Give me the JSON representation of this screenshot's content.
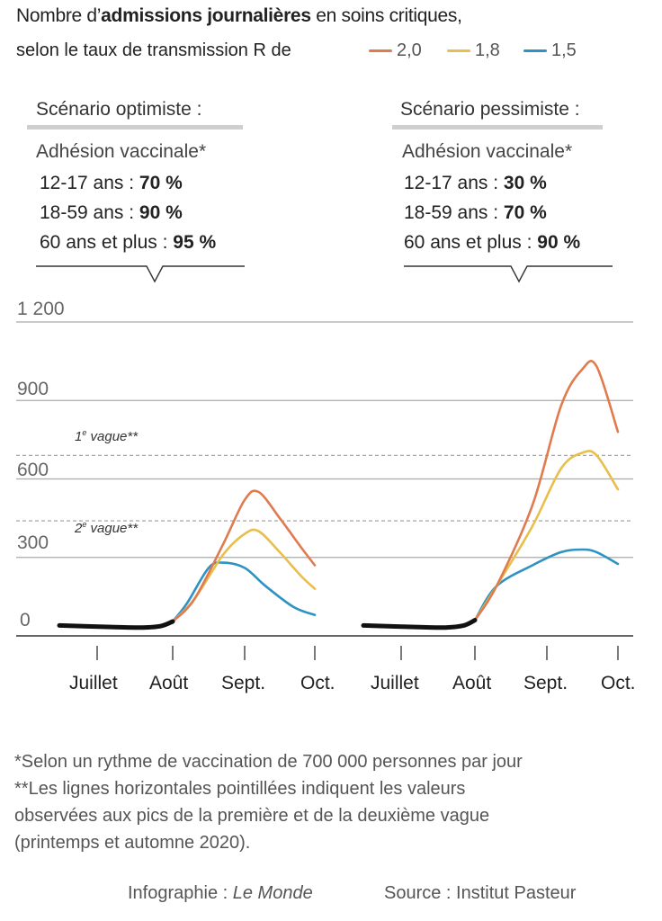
{
  "title": {
    "prefix": "Nombre d’",
    "bold": "admissions journalières",
    "suffix": " en soins critiques,",
    "line2": "selon le taux de transmission R de"
  },
  "legend": [
    {
      "label": "2,0",
      "color": "#e07a4f"
    },
    {
      "label": "1,8",
      "color": "#e8be4d"
    },
    {
      "label": "1,5",
      "color": "#2e93c2"
    }
  ],
  "scenarios": [
    {
      "heading": "Scénario optimiste :",
      "adhesion_label": "Adhésion vaccinale*",
      "rows": [
        {
          "label": "12-17 ans : ",
          "value": "70 %"
        },
        {
          "label": "18-59 ans : ",
          "value": "90 %"
        },
        {
          "label": "60 ans et plus : ",
          "value": "95 %"
        }
      ]
    },
    {
      "heading": "Scénario pessimiste :",
      "adhesion_label": "Adhésion vaccinale*",
      "rows": [
        {
          "label": "12-17 ans : ",
          "value": "30 %"
        },
        {
          "label": "18-59 ans : ",
          "value": "70 %"
        },
        {
          "label": "60 ans et plus : ",
          "value": "90 %"
        }
      ]
    }
  ],
  "chart_data": {
    "type": "line",
    "title": "Nombre d’admissions journalières en soins critiques, selon le taux de transmission R de",
    "ylim": [
      0,
      1200
    ],
    "yticks": [
      0,
      300,
      600,
      900,
      1200
    ],
    "ytick_labels": [
      "0",
      "300",
      "600",
      "900",
      "1 200"
    ],
    "reference_lines": [
      {
        "label": "1e vague**",
        "sup": "e",
        "base": "1",
        "rest": " vague**",
        "value": 690
      },
      {
        "label": "2e vague**",
        "sup": "e",
        "base": "2",
        "rest": " vague**",
        "value": 440
      }
    ],
    "panels": [
      {
        "name": "Scénario optimiste",
        "x_ticks": [
          "Juillet",
          "Août",
          "Sept.",
          "Oct."
        ],
        "observed": [
          [
            0,
            40
          ],
          [
            0.3,
            33
          ],
          [
            0.6,
            32
          ],
          [
            0.85,
            38
          ],
          [
            1.0,
            55
          ]
        ],
        "series": [
          {
            "name": "2,0",
            "color": "#e07a4f",
            "points": [
              [
                1.0,
                55
              ],
              [
                1.3,
                140
              ],
              [
                1.7,
                350
              ],
              [
                2.0,
                520
              ],
              [
                2.2,
                550
              ],
              [
                2.5,
                450
              ],
              [
                2.8,
                340
              ],
              [
                3.0,
                270
              ]
            ]
          },
          {
            "name": "1,8",
            "color": "#e8be4d",
            "points": [
              [
                1.0,
                55
              ],
              [
                1.3,
                140
              ],
              [
                1.7,
                310
              ],
              [
                2.0,
                390
              ],
              [
                2.2,
                400
              ],
              [
                2.5,
                320
              ],
              [
                2.8,
                230
              ],
              [
                3.0,
                180
              ]
            ]
          },
          {
            "name": "1,5",
            "color": "#2e93c2",
            "points": [
              [
                1.0,
                55
              ],
              [
                1.2,
                125
              ],
              [
                1.5,
                260
              ],
              [
                1.7,
                280
              ],
              [
                2.0,
                260
              ],
              [
                2.3,
                190
              ],
              [
                2.7,
                110
              ],
              [
                3.0,
                80
              ]
            ]
          }
        ]
      },
      {
        "name": "Scénario pessimiste",
        "x_ticks": [
          "Juillet",
          "Août",
          "Sept.",
          "Oct."
        ],
        "observed": [
          [
            0,
            40
          ],
          [
            0.3,
            33
          ],
          [
            0.6,
            32
          ],
          [
            0.85,
            40
          ],
          [
            1.0,
            60
          ]
        ],
        "series": [
          {
            "name": "2,0",
            "color": "#e07a4f",
            "points": [
              [
                1.0,
                60
              ],
              [
                1.3,
                190
              ],
              [
                1.8,
                500
              ],
              [
                2.2,
                880
              ],
              [
                2.5,
                1020
              ],
              [
                2.7,
                1030
              ],
              [
                3.0,
                780
              ]
            ]
          },
          {
            "name": "1,8",
            "color": "#e8be4d",
            "points": [
              [
                1.0,
                60
              ],
              [
                1.3,
                190
              ],
              [
                1.8,
                420
              ],
              [
                2.2,
                640
              ],
              [
                2.5,
                700
              ],
              [
                2.7,
                690
              ],
              [
                3.0,
                560
              ]
            ]
          },
          {
            "name": "1,5",
            "color": "#2e93c2",
            "points": [
              [
                1.0,
                60
              ],
              [
                1.3,
                190
              ],
              [
                1.8,
                270
              ],
              [
                2.2,
                320
              ],
              [
                2.5,
                330
              ],
              [
                2.7,
                320
              ],
              [
                3.0,
                275
              ]
            ]
          }
        ]
      }
    ]
  },
  "notes": [
    "*Selon un rythme de vaccination de 700 000 personnes par jour",
    "**Les lignes horizontales pointillées indiquent les valeurs",
    "observées aux pics de la première et de la deuxième vague",
    "(printemps et automne 2020)."
  ],
  "credit": {
    "infographie_label": "Infographie : ",
    "infographie_value": "Le Monde",
    "source": "Source : Institut Pasteur"
  }
}
